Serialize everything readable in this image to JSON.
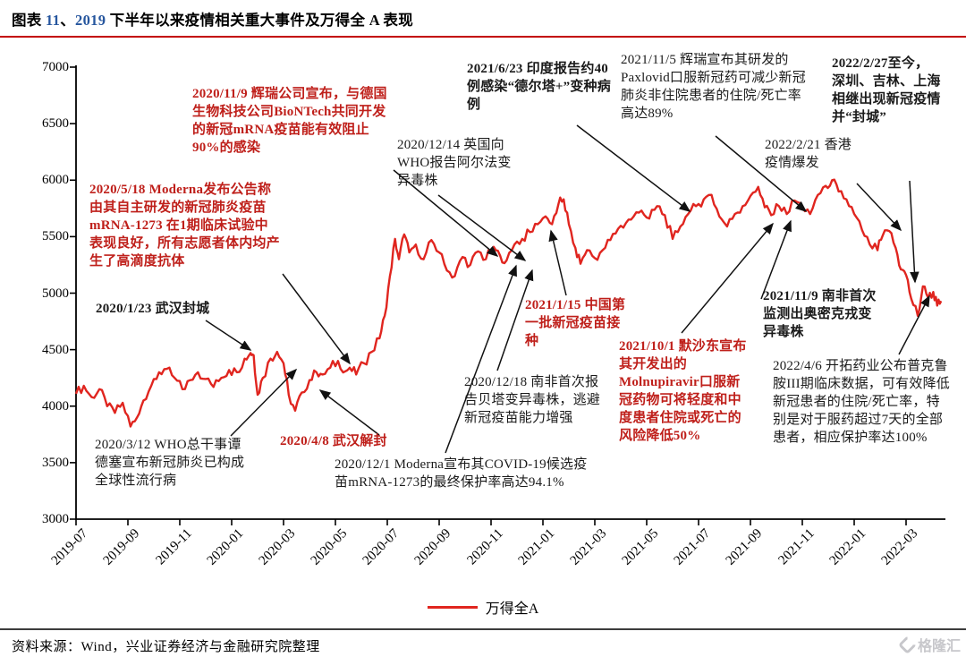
{
  "header": {
    "title_parts": [
      {
        "text": "图表 ",
        "color": "#000000"
      },
      {
        "text": "11",
        "color": "#26569e"
      },
      {
        "text": "、",
        "color": "#000000"
      },
      {
        "text": "2019",
        "color": "#26569e"
      },
      {
        "text": " 下半年以来疫情相关重大事件及万得全 A 表现",
        "color": "#000000"
      }
    ]
  },
  "chart_data": {
    "type": "line",
    "title": "2019 下半年以来疫情相关重大事件及万得全 A 表现",
    "xlabel": "",
    "ylabel": "",
    "ylim": [
      3000,
      7000
    ],
    "y_ticks": [
      7000,
      6500,
      6000,
      5500,
      5000,
      4500,
      4000,
      3500,
      3000
    ],
    "x_tick_labels": [
      "2019-07",
      "2019-09",
      "2019-11",
      "2020-01",
      "2020-03",
      "2020-05",
      "2020-07",
      "2020-09",
      "2020-11",
      "2021-01",
      "2021-03",
      "2021-05",
      "2021-07",
      "2021-09",
      "2021-11",
      "2022-01",
      "2022-03"
    ],
    "x_months_per_tick": 2,
    "grid": false,
    "legend": {
      "label": "万得全A",
      "position": "bottom-center",
      "color": "#e0251f"
    },
    "series": [
      {
        "name": "万得全A",
        "color": "#e0251f",
        "points": [
          [
            0,
            4110
          ],
          [
            0.3,
            4180
          ],
          [
            0.6,
            4080
          ],
          [
            0.9,
            4150
          ],
          [
            1.2,
            4000
          ],
          [
            1.5,
            3940
          ],
          [
            1.8,
            4030
          ],
          [
            2.1,
            3820
          ],
          [
            2.35,
            3900
          ],
          [
            2.6,
            4050
          ],
          [
            2.9,
            4180
          ],
          [
            3.2,
            4300
          ],
          [
            3.5,
            4330
          ],
          [
            3.8,
            4250
          ],
          [
            4.1,
            4150
          ],
          [
            4.4,
            4230
          ],
          [
            4.7,
            4300
          ],
          [
            5.0,
            4240
          ],
          [
            5.3,
            4170
          ],
          [
            5.6,
            4250
          ],
          [
            5.9,
            4320
          ],
          [
            6.2,
            4300
          ],
          [
            6.5,
            4420
          ],
          [
            6.73,
            4470
          ],
          [
            6.85,
            4450
          ],
          [
            7.0,
            4100
          ],
          [
            7.2,
            4250
          ],
          [
            7.5,
            4420
          ],
          [
            7.75,
            4480
          ],
          [
            8.0,
            4380
          ],
          [
            8.2,
            4100
          ],
          [
            8.45,
            3960
          ],
          [
            8.7,
            4120
          ],
          [
            9.0,
            4230
          ],
          [
            9.27,
            4300
          ],
          [
            9.5,
            4280
          ],
          [
            9.8,
            4340
          ],
          [
            10.1,
            4400
          ],
          [
            10.4,
            4310
          ],
          [
            10.55,
            4340
          ],
          [
            10.8,
            4280
          ],
          [
            11.1,
            4380
          ],
          [
            11.4,
            4480
          ],
          [
            11.7,
            4600
          ],
          [
            11.9,
            4800
          ],
          [
            12.1,
            5150
          ],
          [
            12.3,
            5480
          ],
          [
            12.45,
            5300
          ],
          [
            12.65,
            5520
          ],
          [
            12.85,
            5360
          ],
          [
            13.1,
            5430
          ],
          [
            13.4,
            5300
          ],
          [
            13.7,
            5470
          ],
          [
            14.0,
            5360
          ],
          [
            14.3,
            5200
          ],
          [
            14.6,
            5150
          ],
          [
            14.9,
            5320
          ],
          [
            15.2,
            5250
          ],
          [
            15.5,
            5370
          ],
          [
            15.8,
            5300
          ],
          [
            16.1,
            5410
          ],
          [
            16.35,
            5330
          ],
          [
            16.6,
            5290
          ],
          [
            16.9,
            5430
          ],
          [
            17.2,
            5480
          ],
          [
            17.5,
            5540
          ],
          [
            17.8,
            5610
          ],
          [
            18.1,
            5680
          ],
          [
            18.35,
            5610
          ],
          [
            18.6,
            5790
          ],
          [
            18.8,
            5830
          ],
          [
            19.0,
            5610
          ],
          [
            19.25,
            5400
          ],
          [
            19.45,
            5260
          ],
          [
            19.7,
            5380
          ],
          [
            20.0,
            5310
          ],
          [
            20.3,
            5380
          ],
          [
            20.6,
            5470
          ],
          [
            20.9,
            5570
          ],
          [
            21.2,
            5620
          ],
          [
            21.5,
            5680
          ],
          [
            21.8,
            5730
          ],
          [
            22.1,
            5660
          ],
          [
            22.4,
            5770
          ],
          [
            22.7,
            5690
          ],
          [
            23.0,
            5480
          ],
          [
            23.3,
            5590
          ],
          [
            23.6,
            5700
          ],
          [
            23.9,
            5770
          ],
          [
            24.2,
            5830
          ],
          [
            24.5,
            5870
          ],
          [
            24.8,
            5680
          ],
          [
            25.1,
            5590
          ],
          [
            25.4,
            5700
          ],
          [
            25.7,
            5770
          ],
          [
            26.0,
            5860
          ],
          [
            26.3,
            5940
          ],
          [
            26.55,
            5760
          ],
          [
            26.8,
            5690
          ],
          [
            27.1,
            5770
          ],
          [
            27.4,
            5700
          ],
          [
            27.7,
            5820
          ],
          [
            28.0,
            5760
          ],
          [
            28.3,
            5700
          ],
          [
            28.6,
            5870
          ],
          [
            28.9,
            5950
          ],
          [
            29.15,
            6000
          ],
          [
            29.4,
            5900
          ],
          [
            29.7,
            5830
          ],
          [
            30.0,
            5700
          ],
          [
            30.3,
            5560
          ],
          [
            30.6,
            5430
          ],
          [
            30.9,
            5380
          ],
          [
            31.1,
            5510
          ],
          [
            31.35,
            5550
          ],
          [
            31.6,
            5400
          ],
          [
            31.8,
            5210
          ],
          [
            32.0,
            5160
          ],
          [
            32.2,
            4950
          ],
          [
            32.45,
            4800
          ],
          [
            32.65,
            5060
          ],
          [
            32.85,
            4960
          ],
          [
            33.05,
            5010
          ],
          [
            33.2,
            4890
          ],
          [
            33.35,
            4930
          ]
        ]
      }
    ],
    "annotations": [
      {
        "id": "pfizer-1109",
        "text": "2020/11/9 辉瑞公司宣布，与德国生物科技公司BioNTech共同开发的新冠mRNA疫苗能有效阻止90%的感染",
        "color": "#bf1f1a",
        "bold": true
      },
      {
        "id": "moderna-0518",
        "text": "2020/5/18 Moderna发布公告称由其自主研发的新冠肺炎疫苗mRNA-1273 在1期临床试验中表现良好，所有志愿者体内均产生了高滴度抗体",
        "color": "#bf1f1a",
        "bold": true
      },
      {
        "id": "wuhan-lockdown",
        "text": "2020/1/23 武汉封城",
        "color": "#1a1a1a",
        "bold": true
      },
      {
        "id": "who-pandemic",
        "text": "2020/3/12 WHO总干事谭德塞宣布新冠肺炎已构成全球性流行病",
        "color": "#1a1a1a",
        "bold": false
      },
      {
        "id": "wuhan-reopen",
        "text": "2020/4/8 武汉解封",
        "color": "#bf1f1a",
        "bold": true
      },
      {
        "id": "moderna-1201",
        "text": "2020/12/1 Moderna宣布其COVID-19候选疫苗mRNA-1273的最终保护率高达94.1%",
        "color": "#1a1a1a",
        "bold": false
      },
      {
        "id": "uk-alpha",
        "text": "2020/12/14 英国向WHO报告阿尔法变异毒株",
        "color": "#1a1a1a",
        "bold": false
      },
      {
        "id": "delta-plus",
        "text": "2021/6/23 印度报告约40例感染“德尔塔+”变种病例",
        "color": "#1a1a1a",
        "bold": true
      },
      {
        "id": "paxlovid",
        "text": "2021/11/5 辉瑞宣布其研发的Paxlovid口服新冠药可减少新冠肺炎非住院患者的住院/死亡率高达89%",
        "color": "#1a1a1a",
        "bold": false
      },
      {
        "id": "vaccination-0115",
        "text": "2021/1/15 中国第一批新冠疫苗接种",
        "color": "#bf1f1a",
        "bold": true
      },
      {
        "id": "sa-beta",
        "text": "2020/12/18 南非首次报告贝塔变异毒株，逃避新冠疫苗能力增强",
        "color": "#1a1a1a",
        "bold": false
      },
      {
        "id": "merck-1001",
        "text": "2021/10/1 默沙东宣布其开发出的Molnupiravir口服新冠药物可将轻度和中度患者住院或死亡的风险降低50%",
        "color": "#bf1f1a",
        "bold": true
      },
      {
        "id": "hk-outbreak",
        "text": "2022/2/21 香港疫情爆发",
        "color": "#1a1a1a",
        "bold": false
      },
      {
        "id": "lockdown-2022",
        "text": "2022/2/27至今，深圳、吉林、上海相继出现新冠疫情并“封城”",
        "color": "#1a1a1a",
        "bold": true
      },
      {
        "id": "omicron-1109",
        "text": "2021/11/9 南非首次监测出奥密克戎变异毒株",
        "color": "#1a1a1a",
        "bold": true
      },
      {
        "id": "kintor-0406",
        "text": "2022/4/6 开拓药业公布普克鲁胺III期临床数据，可有效降低新冠患者的住院/死亡率，特别是对于服药超过7天的全部患者，相应保护率达100%",
        "color": "#1a1a1a",
        "bold": false
      }
    ]
  },
  "footer": {
    "source": "资料来源：Wind，兴业证券经济与金融研究院整理",
    "logo_text": "格隆汇"
  }
}
